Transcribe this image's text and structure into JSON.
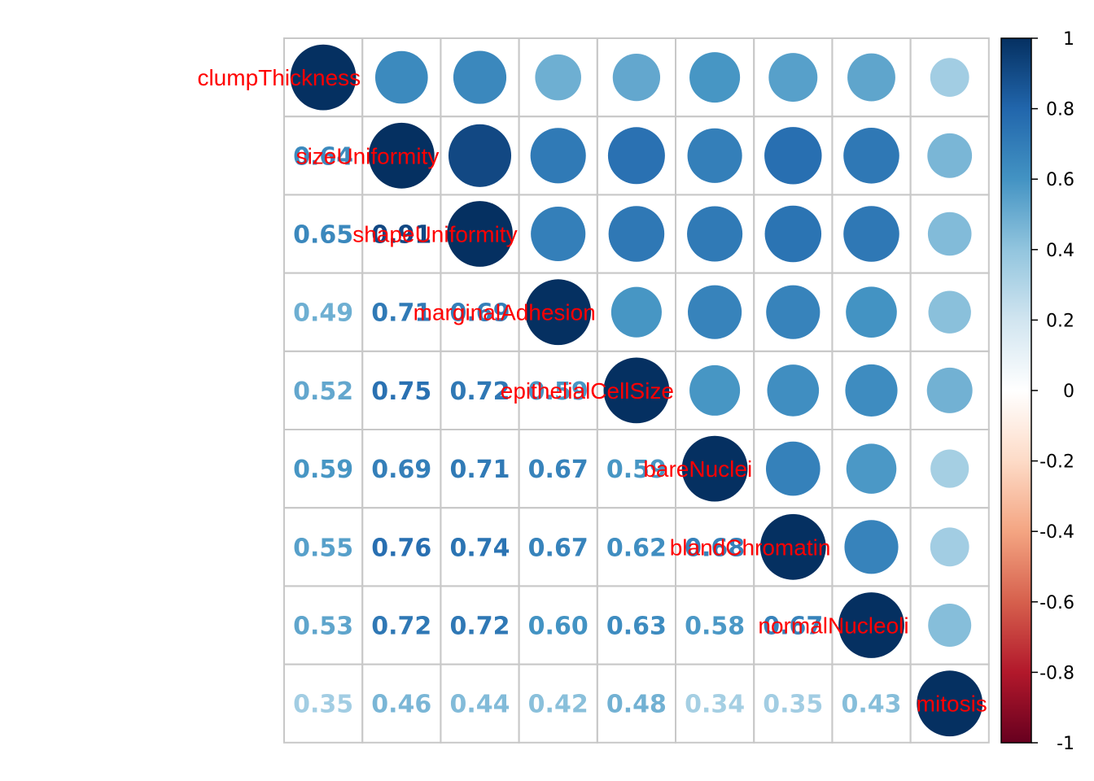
{
  "chart_data": {
    "type": "heatmap",
    "variables": [
      "clumpThickness",
      "sizeUniformity",
      "shapeUniformity",
      "marginalAdhesion",
      "epithelialCellSize",
      "bareNuclei",
      "blandChromatin",
      "normalNucleoli",
      "mitosis"
    ],
    "lower_labels": [
      [
        "0.64"
      ],
      [
        "0.65",
        "0.91"
      ],
      [
        "0.49",
        "0.71",
        "0.69"
      ],
      [
        "0.52",
        "0.75",
        "0.72",
        "0.59"
      ],
      [
        "0.59",
        "0.69",
        "0.71",
        "0.67",
        "0.59"
      ],
      [
        "0.55",
        "0.76",
        "0.74",
        "0.67",
        "0.62",
        "0.68"
      ],
      [
        "0.53",
        "0.72",
        "0.72",
        "0.60",
        "0.63",
        "0.58",
        "0.67"
      ],
      [
        "0.35",
        "0.46",
        "0.44",
        "0.42",
        "0.48",
        "0.34",
        "0.35",
        "0.43"
      ]
    ],
    "colorbar_ticks": [
      "1",
      "0.8",
      "0.6",
      "0.4",
      "0.2",
      "0",
      "-0.2",
      "-0.4",
      "-0.6",
      "-0.8",
      "-1"
    ],
    "colorbar_range": [
      -1,
      1
    ],
    "upper_shape": "circle",
    "lower_style": "number",
    "diagonal_label_color": "#ff0000",
    "colormap": [
      "#67001f",
      "#b2182b",
      "#d6604d",
      "#f4a582",
      "#fddbc7",
      "#ffffff",
      "#d1e5f0",
      "#92c5de",
      "#4393c3",
      "#2166ac",
      "#053061"
    ]
  }
}
